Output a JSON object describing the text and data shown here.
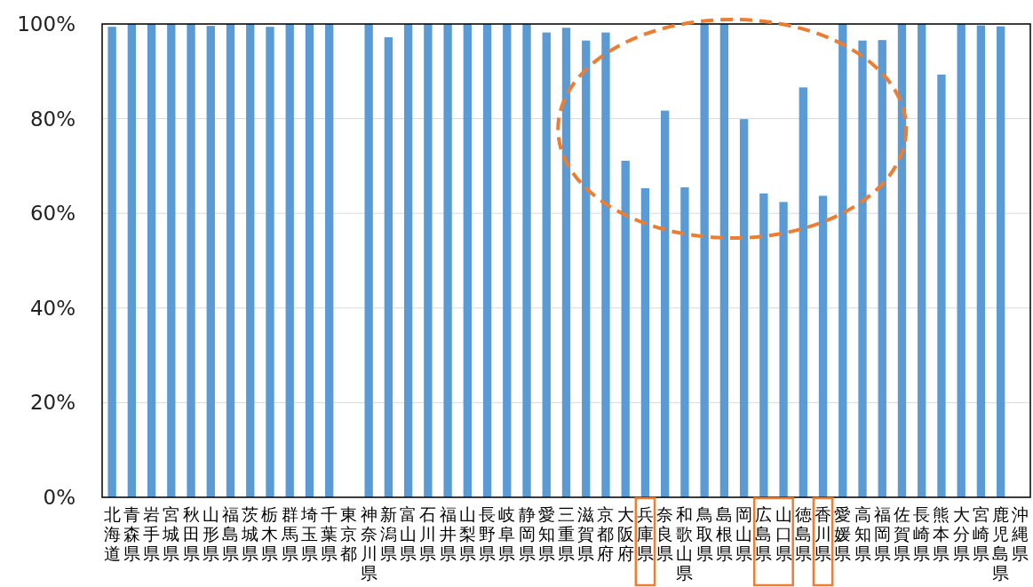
{
  "chart_data": {
    "type": "bar",
    "categories": [
      "北海道",
      "青森県",
      "岩手県",
      "宮城県",
      "秋田県",
      "山形県",
      "福島県",
      "茨城県",
      "栃木県",
      "群馬県",
      "埼玉県",
      "千葉県",
      "東京都",
      "神奈川県",
      "新潟県",
      "富山県",
      "石川県",
      "福井県",
      "山梨県",
      "長野県",
      "岐阜県",
      "静岡県",
      "愛知県",
      "三重県",
      "滋賀県",
      "京都府",
      "大阪府",
      "兵庫県",
      "奈良県",
      "和歌山県",
      "鳥取県",
      "島根県",
      "岡山県",
      "広島県",
      "山口県",
      "徳島県",
      "香川県",
      "愛媛県",
      "高知県",
      "福岡県",
      "佐賀県",
      "長崎県",
      "熊本県",
      "大分県",
      "宮崎県",
      "鹿児島県",
      "沖縄県"
    ],
    "values": [
      99.4,
      100,
      100,
      100,
      100,
      99.6,
      100,
      100,
      99.4,
      100,
      100,
      100,
      null,
      100,
      97.2,
      100,
      100,
      100,
      100,
      100,
      100,
      100,
      98.2,
      99.2,
      96.5,
      98.2,
      71.1,
      65.3,
      81.7,
      65.5,
      100,
      100,
      79.9,
      64.2,
      62.4,
      86.6,
      63.7,
      100,
      96.5,
      96.6,
      100,
      100,
      89.3,
      100,
      99.7,
      99.5,
      null
    ],
    "color": "#5b9bd5",
    "ylim": [
      0,
      100
    ],
    "yticks": [
      {
        "value": 0,
        "label": "0%"
      },
      {
        "value": 20,
        "label": "20%"
      },
      {
        "value": 40,
        "label": "40%"
      },
      {
        "value": 60,
        "label": "60%"
      },
      {
        "value": 80,
        "label": "80%"
      },
      {
        "value": 100,
        "label": "100%"
      }
    ],
    "grid": "y"
  }
}
